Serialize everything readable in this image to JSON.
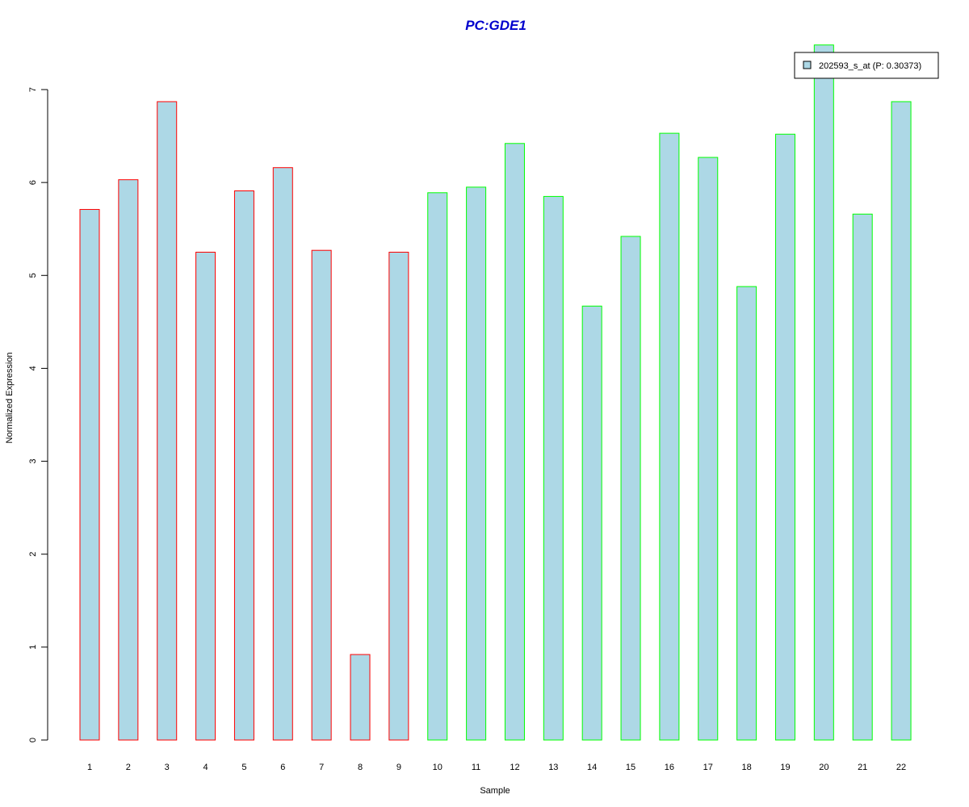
{
  "chart_data": {
    "type": "bar",
    "title": "PC:GDE1",
    "xlabel": "Sample",
    "ylabel": "Normalized Expression",
    "categories": [
      "1",
      "2",
      "3",
      "4",
      "5",
      "6",
      "7",
      "8",
      "9",
      "10",
      "11",
      "12",
      "13",
      "14",
      "15",
      "16",
      "17",
      "18",
      "19",
      "20",
      "21",
      "22"
    ],
    "values": [
      5.71,
      6.03,
      6.87,
      5.25,
      5.91,
      6.16,
      5.27,
      0.92,
      5.25,
      5.89,
      5.95,
      6.42,
      5.85,
      4.67,
      5.42,
      6.53,
      6.27,
      4.88,
      6.52,
      7.48,
      5.66,
      6.87
    ],
    "groups": [
      "red",
      "red",
      "red",
      "red",
      "red",
      "red",
      "red",
      "red",
      "red",
      "green",
      "green",
      "green",
      "green",
      "green",
      "green",
      "green",
      "green",
      "green",
      "green",
      "green",
      "green",
      "green"
    ],
    "ylim": [
      0,
      7
    ],
    "yticks": [
      "0",
      "1",
      "2",
      "3",
      "4",
      "5",
      "6",
      "7"
    ],
    "legend": {
      "label": "202593_s_at (P: 0.30373)",
      "placement": "top-right"
    },
    "colors": {
      "fill": "#add8e6",
      "red": "#ff0000",
      "green": "#00ff00",
      "title": "#0000cd"
    },
    "grid": false
  }
}
